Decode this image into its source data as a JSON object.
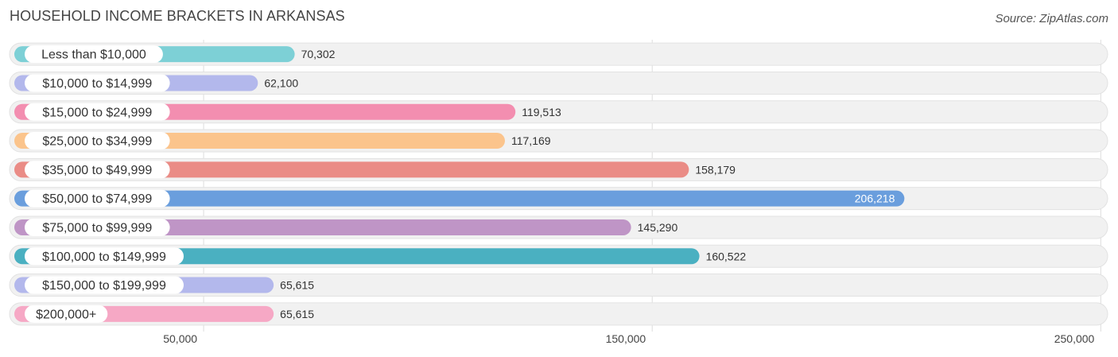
{
  "title": "HOUSEHOLD INCOME BRACKETS IN ARKANSAS",
  "source": "Source: ZipAtlas.com",
  "chart_data": {
    "type": "bar",
    "orientation": "horizontal",
    "title": "HOUSEHOLD INCOME BRACKETS IN ARKANSAS",
    "categories": [
      "Less than $10,000",
      "$10,000 to $14,999",
      "$15,000 to $24,999",
      "$25,000 to $34,999",
      "$35,000 to $49,999",
      "$50,000 to $74,999",
      "$75,000 to $99,999",
      "$100,000 to $149,999",
      "$150,000 to $199,999",
      "$200,000+"
    ],
    "values": [
      70302,
      62100,
      119513,
      117169,
      158179,
      206218,
      145290,
      160522,
      65615,
      65615
    ],
    "value_labels": [
      "70,302",
      "62,100",
      "119,513",
      "117,169",
      "158,179",
      "206,218",
      "145,290",
      "160,522",
      "65,615",
      "65,615"
    ],
    "colors": [
      "#7dd0d6",
      "#b3b8ec",
      "#f38eb0",
      "#fbc48c",
      "#ea8c86",
      "#6a9edd",
      "#bf95c6",
      "#4ab0c1",
      "#b3b8ec",
      "#f6a8c5"
    ],
    "x_ticks": [
      50000,
      150000,
      250000
    ],
    "x_tick_labels": [
      "50,000",
      "150,000",
      "250,000"
    ],
    "xlim": [
      7800,
      251000
    ],
    "grid": true,
    "xlabel": "",
    "ylabel": ""
  }
}
